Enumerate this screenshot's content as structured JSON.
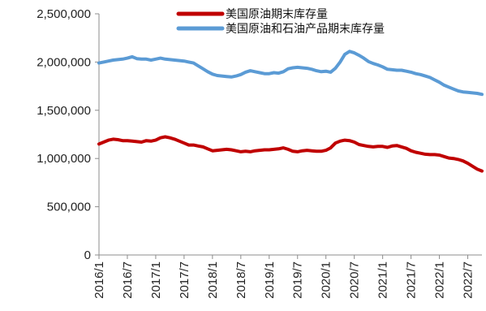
{
  "chart_data": {
    "type": "line",
    "title": "",
    "xlabel": "",
    "ylabel": "",
    "ylim": [
      0,
      2500000
    ],
    "yticks": [
      0,
      500000,
      1000000,
      1500000,
      2000000,
      2500000
    ],
    "ytick_labels": [
      "0",
      "500,000",
      "1,000,000",
      "1,500,000",
      "2,000,000",
      "2,500,000"
    ],
    "xticks": [
      "2016/1",
      "2016/7",
      "2017/1",
      "2017/7",
      "2018/1",
      "2018/7",
      "2019/1",
      "2019/7",
      "2020/1",
      "2020/7",
      "2021/1",
      "2021/7",
      "2022/1",
      "2022/7"
    ],
    "x_range": [
      "2016/1",
      "2022/10"
    ],
    "grid": false,
    "legend_position": "top-center",
    "series": [
      {
        "name": "美国原油期末库存量",
        "color": "#c00000",
        "dates": [
          "2016/1",
          "2016/2",
          "2016/3",
          "2016/4",
          "2016/5",
          "2016/6",
          "2016/7",
          "2016/8",
          "2016/9",
          "2016/10",
          "2016/11",
          "2016/12",
          "2017/1",
          "2017/2",
          "2017/3",
          "2017/4",
          "2017/5",
          "2017/6",
          "2017/7",
          "2017/8",
          "2017/9",
          "2017/10",
          "2017/11",
          "2017/12",
          "2018/1",
          "2018/2",
          "2018/3",
          "2018/4",
          "2018/5",
          "2018/6",
          "2018/7",
          "2018/8",
          "2018/9",
          "2018/10",
          "2018/11",
          "2018/12",
          "2019/1",
          "2019/2",
          "2019/3",
          "2019/4",
          "2019/5",
          "2019/6",
          "2019/7",
          "2019/8",
          "2019/9",
          "2019/10",
          "2019/11",
          "2019/12",
          "2020/1",
          "2020/2",
          "2020/3",
          "2020/4",
          "2020/5",
          "2020/6",
          "2020/7",
          "2020/8",
          "2020/9",
          "2020/10",
          "2020/11",
          "2020/12",
          "2021/1",
          "2021/2",
          "2021/3",
          "2021/4",
          "2021/5",
          "2021/6",
          "2021/7",
          "2021/8",
          "2021/9",
          "2021/10",
          "2021/11",
          "2021/12",
          "2022/1",
          "2022/2",
          "2022/3",
          "2022/4",
          "2022/5",
          "2022/6",
          "2022/7",
          "2022/8",
          "2022/9",
          "2022/10"
        ],
        "values": [
          1150000,
          1170000,
          1190000,
          1200000,
          1195000,
          1185000,
          1185000,
          1180000,
          1175000,
          1170000,
          1185000,
          1180000,
          1190000,
          1215000,
          1225000,
          1215000,
          1200000,
          1180000,
          1160000,
          1140000,
          1140000,
          1130000,
          1120000,
          1100000,
          1080000,
          1085000,
          1090000,
          1095000,
          1090000,
          1080000,
          1070000,
          1075000,
          1070000,
          1080000,
          1085000,
          1090000,
          1090000,
          1095000,
          1100000,
          1110000,
          1095000,
          1075000,
          1070000,
          1080000,
          1085000,
          1080000,
          1075000,
          1075000,
          1085000,
          1110000,
          1160000,
          1180000,
          1190000,
          1185000,
          1170000,
          1145000,
          1135000,
          1125000,
          1120000,
          1125000,
          1125000,
          1115000,
          1130000,
          1135000,
          1120000,
          1105000,
          1080000,
          1065000,
          1055000,
          1045000,
          1040000,
          1040000,
          1035000,
          1020000,
          1005000,
          1000000,
          990000,
          975000,
          950000,
          920000,
          890000,
          870000
        ]
      },
      {
        "name": "美国原油和石油产品期末库存量",
        "color": "#5b9bd5",
        "dates": [
          "2016/1",
          "2016/2",
          "2016/3",
          "2016/4",
          "2016/5",
          "2016/6",
          "2016/7",
          "2016/8",
          "2016/9",
          "2016/10",
          "2016/11",
          "2016/12",
          "2017/1",
          "2017/2",
          "2017/3",
          "2017/4",
          "2017/5",
          "2017/6",
          "2017/7",
          "2017/8",
          "2017/9",
          "2017/10",
          "2017/11",
          "2017/12",
          "2018/1",
          "2018/2",
          "2018/3",
          "2018/4",
          "2018/5",
          "2018/6",
          "2018/7",
          "2018/8",
          "2018/9",
          "2018/10",
          "2018/11",
          "2018/12",
          "2019/1",
          "2019/2",
          "2019/3",
          "2019/4",
          "2019/5",
          "2019/6",
          "2019/7",
          "2019/8",
          "2019/9",
          "2019/10",
          "2019/11",
          "2019/12",
          "2020/1",
          "2020/2",
          "2020/3",
          "2020/4",
          "2020/5",
          "2020/6",
          "2020/7",
          "2020/8",
          "2020/9",
          "2020/10",
          "2020/11",
          "2020/12",
          "2021/1",
          "2021/2",
          "2021/3",
          "2021/4",
          "2021/5",
          "2021/6",
          "2021/7",
          "2021/8",
          "2021/9",
          "2021/10",
          "2021/11",
          "2021/12",
          "2022/1",
          "2022/2",
          "2022/3",
          "2022/4",
          "2022/5",
          "2022/6",
          "2022/7",
          "2022/8",
          "2022/9",
          "2022/10"
        ],
        "values": [
          1990000,
          2000000,
          2010000,
          2020000,
          2025000,
          2030000,
          2040000,
          2055000,
          2035000,
          2030000,
          2030000,
          2020000,
          2030000,
          2040000,
          2030000,
          2025000,
          2020000,
          2015000,
          2010000,
          2000000,
          1990000,
          1960000,
          1930000,
          1900000,
          1875000,
          1860000,
          1855000,
          1850000,
          1845000,
          1855000,
          1870000,
          1895000,
          1910000,
          1900000,
          1890000,
          1880000,
          1880000,
          1890000,
          1885000,
          1900000,
          1930000,
          1940000,
          1945000,
          1940000,
          1935000,
          1925000,
          1910000,
          1900000,
          1905000,
          1895000,
          1935000,
          2000000,
          2080000,
          2110000,
          2095000,
          2070000,
          2040000,
          2005000,
          1985000,
          1970000,
          1950000,
          1925000,
          1920000,
          1915000,
          1915000,
          1905000,
          1895000,
          1880000,
          1870000,
          1855000,
          1840000,
          1815000,
          1790000,
          1760000,
          1740000,
          1720000,
          1700000,
          1690000,
          1685000,
          1680000,
          1675000,
          1665000
        ]
      }
    ]
  }
}
